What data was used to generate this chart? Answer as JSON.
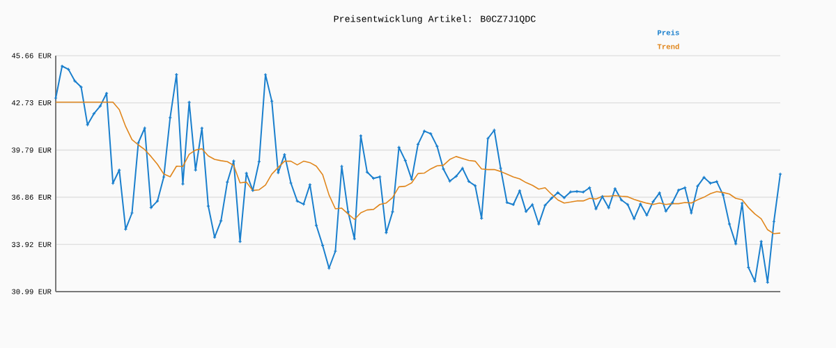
{
  "chart_data": {
    "type": "line",
    "title": "Preisentwicklung Artikel: B0CZ7J1QDC",
    "categories": [
      null,
      null,
      null,
      null,
      null,
      null,
      null,
      null,
      null,
      null,
      null,
      null,
      null,
      null,
      null,
      null,
      null,
      null,
      null,
      null,
      null,
      null,
      null,
      null,
      null,
      null,
      null,
      null,
      null,
      null,
      null,
      null,
      null,
      null,
      null,
      null,
      null,
      null,
      null,
      null,
      null,
      null,
      null,
      null,
      null,
      null,
      null,
      null,
      null,
      null,
      null,
      null,
      null,
      null,
      null,
      null,
      null,
      null,
      null,
      null,
      null,
      null,
      null,
      null,
      null,
      null,
      null,
      null,
      null,
      null,
      null,
      null,
      null,
      null,
      null,
      null,
      null,
      null,
      null,
      null,
      null,
      null,
      null,
      null,
      null,
      null,
      null,
      null,
      null,
      null,
      null,
      null,
      null,
      null,
      null,
      null,
      null,
      null,
      null,
      null,
      null,
      null,
      null,
      null,
      null,
      null,
      null,
      null,
      null,
      null,
      null,
      null,
      null,
      null,
      null
    ],
    "series": [
      {
        "name": "Preis",
        "color": "#1a7fcd",
        "marker": "cross",
        "values": [
          43.02,
          45.01,
          44.81,
          44.09,
          43.71,
          41.36,
          42.05,
          42.53,
          43.32,
          37.73,
          38.55,
          34.87,
          35.88,
          40.25,
          41.16,
          36.21,
          36.62,
          38.12,
          41.8,
          44.49,
          37.68,
          42.77,
          38.55,
          41.15,
          36.31,
          34.37,
          35.39,
          37.8,
          39.11,
          34.1,
          38.35,
          37.28,
          39.08,
          44.48,
          42.83,
          38.38,
          39.51,
          37.74,
          36.62,
          36.43,
          37.64,
          35.11,
          33.86,
          32.45,
          33.5,
          38.78,
          35.95,
          34.27,
          40.68,
          38.42,
          38.03,
          38.13,
          34.65,
          35.95,
          39.96,
          39.14,
          37.97,
          40.15,
          40.97,
          40.81,
          40.03,
          38.61,
          37.86,
          38.16,
          38.66,
          37.84,
          37.57,
          35.55,
          40.51,
          41.03,
          38.66,
          36.53,
          36.4,
          37.26,
          35.97,
          36.4,
          35.19,
          36.36,
          36.79,
          37.15,
          36.83,
          37.19,
          37.22,
          37.18,
          37.45,
          36.13,
          36.9,
          36.2,
          37.39,
          36.69,
          36.4,
          35.52,
          36.44,
          35.74,
          36.59,
          37.13,
          35.99,
          36.51,
          37.3,
          37.45,
          35.88,
          37.55,
          38.09,
          37.73,
          37.83,
          37.0,
          35.19,
          33.96,
          36.49,
          32.49,
          31.63,
          34.11,
          31.57,
          35.35,
          38.3
        ]
      },
      {
        "name": "Trend",
        "color": "#e0861c",
        "values": [
          42.77,
          42.77,
          42.77,
          42.77,
          42.77,
          42.77,
          42.77,
          42.77,
          42.77,
          42.77,
          42.31,
          41.26,
          40.44,
          40.11,
          39.82,
          39.39,
          38.91,
          38.3,
          38.13,
          38.79,
          38.77,
          39.53,
          39.79,
          39.87,
          39.43,
          39.21,
          39.13,
          39.07,
          38.84,
          37.75,
          37.8,
          37.28,
          37.32,
          37.62,
          38.3,
          38.71,
          39.1,
          39.1,
          38.87,
          39.1,
          39.01,
          38.79,
          38.26,
          37.0,
          36.14,
          36.18,
          35.82,
          35.48,
          35.89,
          36.07,
          36.1,
          36.41,
          36.5,
          36.84,
          37.51,
          37.54,
          37.75,
          38.33,
          38.36,
          38.62,
          38.81,
          38.85,
          39.21,
          39.39,
          39.27,
          39.15,
          39.1,
          38.62,
          38.58,
          38.58,
          38.46,
          38.29,
          38.12,
          38.0,
          37.77,
          37.6,
          37.36,
          37.45,
          37.05,
          36.69,
          36.5,
          36.56,
          36.63,
          36.63,
          36.79,
          36.75,
          36.92,
          36.92,
          36.96,
          36.92,
          36.89,
          36.72,
          36.6,
          36.49,
          36.41,
          36.5,
          36.41,
          36.46,
          36.46,
          36.53,
          36.5,
          36.7,
          36.86,
          37.08,
          37.21,
          37.15,
          37.06,
          36.79,
          36.7,
          36.21,
          35.82,
          35.52,
          34.84,
          34.59,
          34.63
        ]
      }
    ],
    "ylim": [
      30.99,
      45.66
    ],
    "yticks": [
      {
        "value": 30.99,
        "label": "30.99 EUR"
      },
      {
        "value": 33.92,
        "label": "33.92 EUR"
      },
      {
        "value": 36.86,
        "label": "36.86 EUR"
      },
      {
        "value": 39.79,
        "label": "39.79 EUR"
      },
      {
        "value": 42.73,
        "label": "42.73 EUR"
      },
      {
        "value": 45.66,
        "label": "45.66 EUR"
      }
    ],
    "grid": "y",
    "legend": "top right",
    "line_style": "solid"
  }
}
